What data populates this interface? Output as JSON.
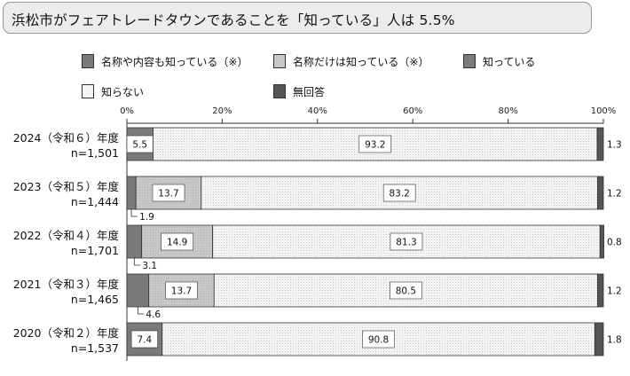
{
  "title": "浜松市がフェアトレードタウンであることを「知っている」人は 5.5%",
  "legend": [
    {
      "key": "detail",
      "label": "名称や内容も知っている（※）",
      "fill": "detail"
    },
    {
      "key": "name",
      "label": "名称だけは知っている（※）",
      "fill": "name"
    },
    {
      "key": "know",
      "label": "知っている",
      "fill": "know"
    },
    {
      "key": "dont",
      "label": "知らない",
      "fill": "dont"
    },
    {
      "key": "noans",
      "label": "無回答",
      "fill": "noans"
    }
  ],
  "colors": {
    "detail": "#7a7a7a",
    "name": "#c8c8c8",
    "know": "#7a7a7a",
    "dont": "#f4f4f4",
    "noans": "#555555",
    "border": "#333333"
  },
  "chart_data": {
    "type": "bar",
    "orientation": "horizontal",
    "stacked": true,
    "xlim": [
      0,
      100
    ],
    "x_ticks": [
      "0%",
      "20%",
      "40%",
      "60%",
      "80%",
      "100%"
    ],
    "categories": [
      {
        "year": "2024（令和６）年度",
        "n": "n=1,501"
      },
      {
        "year": "2023（令和５）年度",
        "n": "n=1,444"
      },
      {
        "year": "2022（令和４）年度",
        "n": "n=1,701"
      },
      {
        "year": "2021（令和３）年度",
        "n": "n=1,465"
      },
      {
        "year": "2020（令和２）年度",
        "n": "n=1,537"
      }
    ],
    "rows": [
      {
        "segments": [
          {
            "series": "know",
            "value": 5.5,
            "label": "5.5"
          },
          {
            "series": "dont",
            "value": 93.2,
            "label": "93.2"
          },
          {
            "series": "noans",
            "value": 1.3,
            "label": "1.3"
          }
        ]
      },
      {
        "segments": [
          {
            "series": "detail",
            "value": 1.9,
            "label": "1.9"
          },
          {
            "series": "name",
            "value": 13.7,
            "label": "13.7"
          },
          {
            "series": "dont",
            "value": 83.2,
            "label": "83.2"
          },
          {
            "series": "noans",
            "value": 1.2,
            "label": "1.2"
          }
        ]
      },
      {
        "segments": [
          {
            "series": "detail",
            "value": 3.1,
            "label": "3.1"
          },
          {
            "series": "name",
            "value": 14.9,
            "label": "14.9"
          },
          {
            "series": "dont",
            "value": 81.3,
            "label": "81.3"
          },
          {
            "series": "noans",
            "value": 0.8,
            "label": "0.8"
          }
        ]
      },
      {
        "segments": [
          {
            "series": "detail",
            "value": 4.6,
            "label": "4.6"
          },
          {
            "series": "name",
            "value": 13.7,
            "label": "13.7"
          },
          {
            "series": "dont",
            "value": 80.5,
            "label": "80.5"
          },
          {
            "series": "noans",
            "value": 1.2,
            "label": "1.2"
          }
        ]
      },
      {
        "segments": [
          {
            "series": "know",
            "value": 7.4,
            "label": "7.4"
          },
          {
            "series": "dont",
            "value": 90.8,
            "label": "90.8"
          },
          {
            "series": "noans",
            "value": 1.8,
            "label": "1.8"
          }
        ]
      }
    ]
  }
}
